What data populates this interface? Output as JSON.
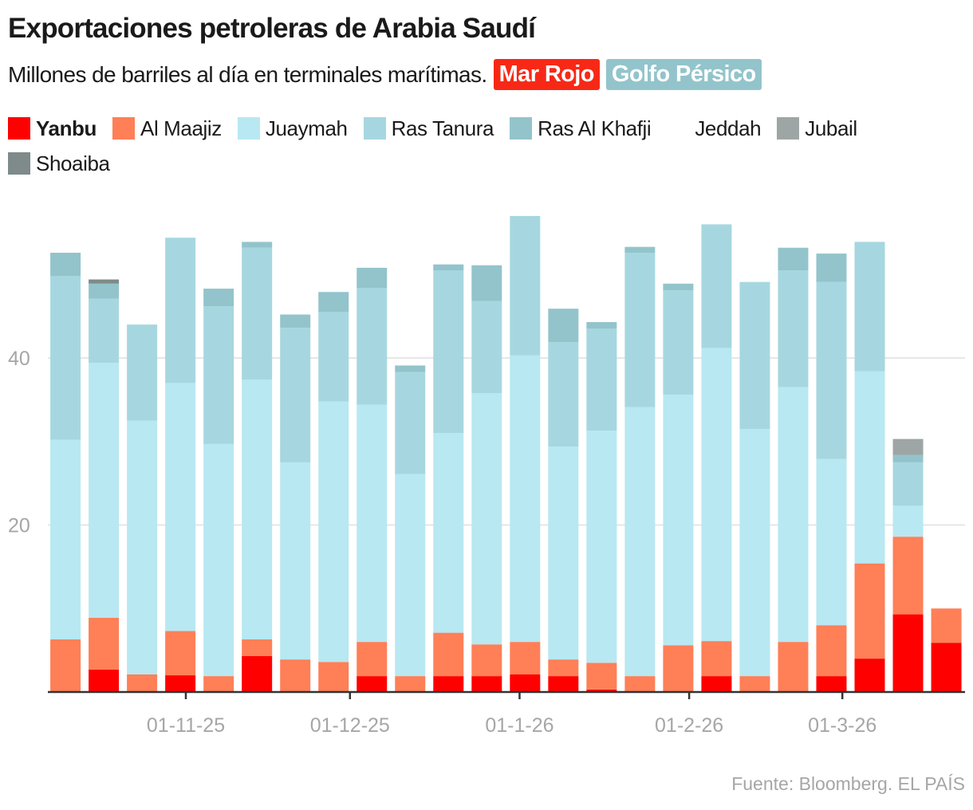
{
  "title": "Exportaciones petroleras de Arabia Saudí",
  "subtitle": "Millones de barriles al día en terminales marítimas.",
  "tags": [
    {
      "label": "Mar Rojo",
      "color": "#f72916"
    },
    {
      "label": "Golfo Pérsico",
      "color": "#93c4cb"
    }
  ],
  "source": "Fuente: Bloomberg. EL PAÍS",
  "chart_data": {
    "type": "bar",
    "stacked": true,
    "title": "Exportaciones petroleras de Arabia Saudí",
    "ylabel": "",
    "xlabel": "",
    "ylim": [
      0,
      57
    ],
    "yticks": [
      20,
      40
    ],
    "ytick_labels": [
      "20",
      "40"
    ],
    "xticks": [
      "2025-11-01",
      "2025-12-01",
      "2026-01-01",
      "2026-02-01",
      "2026-03-01"
    ],
    "xtick_labels": [
      "01-11-25",
      "01-12-25",
      "01-1-26",
      "01-2-26",
      "01-3-26"
    ],
    "grid": "horizontal",
    "legend": "top",
    "x": [
      "2025-10-10",
      "2025-10-17",
      "2025-10-24",
      "2025-10-31",
      "2025-11-07",
      "2025-11-14",
      "2025-11-21",
      "2025-11-28",
      "2025-12-05",
      "2025-12-12",
      "2025-12-19",
      "2025-12-26",
      "2026-01-02",
      "2026-01-09",
      "2026-01-16",
      "2026-01-23",
      "2026-01-30",
      "2026-02-06",
      "2026-02-13",
      "2026-02-20",
      "2026-02-27",
      "2026-03-06",
      "2026-03-13",
      "2026-03-20"
    ],
    "series": [
      {
        "name": "Yanbu",
        "color": "#ff0000",
        "bold": true,
        "values": [
          0,
          2.7,
          0,
          2.0,
          0,
          4.3,
          0,
          0,
          1.9,
          0,
          1.9,
          1.9,
          2.1,
          1.9,
          0.3,
          0,
          0,
          1.9,
          0,
          0,
          1.9,
          4.0,
          9.3,
          5.9
        ]
      },
      {
        "name": "Al Maajiz",
        "color": "#ff7f57",
        "values": [
          6.3,
          6.2,
          2.1,
          5.3,
          1.9,
          2.0,
          3.9,
          3.6,
          4.1,
          1.9,
          5.2,
          3.8,
          3.9,
          2.0,
          3.2,
          1.9,
          5.6,
          4.2,
          1.9,
          6.0,
          6.1,
          11.4,
          9.3,
          4.1
        ]
      },
      {
        "name": "Juaymah",
        "color": "#b8e8f2",
        "values": [
          23.9,
          30.5,
          30.4,
          29.7,
          27.8,
          31.1,
          23.6,
          31.2,
          28.4,
          24.2,
          23.9,
          30.1,
          34.3,
          25.5,
          27.8,
          32.2,
          30.0,
          35.1,
          29.6,
          30.5,
          19.9,
          23.0,
          3.7,
          0
        ]
      },
      {
        "name": "Ras Tanura",
        "color": "#a6d7e0",
        "values": [
          19.6,
          7.7,
          11.5,
          17.4,
          16.5,
          15.8,
          16.1,
          10.7,
          14.0,
          12.2,
          19.5,
          11.0,
          16.7,
          12.5,
          12.2,
          18.5,
          12.5,
          14.8,
          17.6,
          14.0,
          21.2,
          15.5,
          5.2,
          0
        ]
      },
      {
        "name": "Ras Al Khafji",
        "color": "#93c4cb",
        "values": [
          2.8,
          1.8,
          0,
          0,
          2.1,
          0.7,
          1.6,
          2.4,
          2.4,
          0.8,
          0.7,
          4.3,
          0,
          4.0,
          0.8,
          0.7,
          0.8,
          0,
          0,
          2.7,
          3.4,
          0,
          0.9,
          0
        ]
      },
      {
        "name": "Jeddah",
        "color": "#ffffff",
        "values": [
          0,
          0,
          0,
          0,
          0,
          0,
          0,
          0,
          0,
          0,
          0,
          0,
          0,
          0,
          0,
          0,
          0,
          0,
          0,
          0,
          0,
          0,
          0,
          0
        ]
      },
      {
        "name": "Jubail",
        "color": "#9ea5a5",
        "values": [
          0,
          0,
          0,
          0,
          0,
          0,
          0,
          0,
          0,
          0,
          0,
          0,
          0,
          0,
          0,
          0,
          0,
          0,
          0,
          0,
          0,
          0,
          1.9,
          0
        ]
      },
      {
        "name": "Shoaiba",
        "color": "#7f8a8a",
        "values": [
          0,
          0.5,
          0,
          0,
          0,
          0,
          0,
          0,
          0,
          0,
          0,
          0,
          0,
          0,
          0,
          0,
          0,
          0,
          0,
          0,
          0,
          0,
          0,
          0
        ]
      }
    ]
  }
}
